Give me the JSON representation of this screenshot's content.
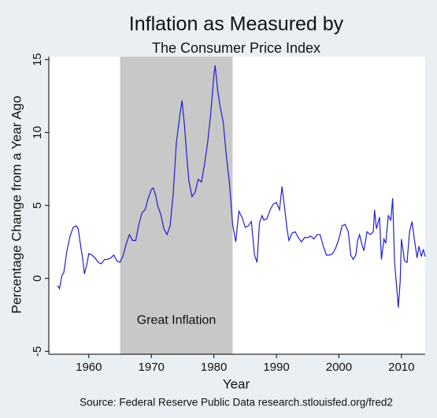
{
  "chart_data": {
    "type": "line",
    "title": "Inflation as Measured by",
    "subtitle": "The Consumer Price Index",
    "x_label": "Year",
    "y_label": "Percentage Change from a Year Ago",
    "source": "Source: Federal Reserve Public Data research.stlouisfed.org/fred2",
    "shade": {
      "x": [
        1965,
        1983
      ],
      "label": "Great Inflation",
      "color": "#c8c8c8"
    },
    "xlim": [
      1953.6,
      2013.8
    ],
    "xticks": [
      1960,
      1970,
      1980,
      1990,
      2000,
      2010
    ],
    "ylim": [
      -5.2,
      15.2
    ],
    "yticks": [
      -5,
      0,
      5,
      10,
      15
    ],
    "x": [
      1955.0,
      1955.3,
      1955.7,
      1956.0,
      1956.5,
      1957.0,
      1957.5,
      1958.0,
      1958.3,
      1958.7,
      1959.0,
      1959.3,
      1959.7,
      1960.0,
      1960.5,
      1961.0,
      1961.5,
      1962.0,
      1962.5,
      1963.0,
      1963.5,
      1964.0,
      1964.5,
      1965.0,
      1965.5,
      1966.0,
      1966.5,
      1967.0,
      1967.5,
      1968.0,
      1968.5,
      1969.0,
      1969.5,
      1970.0,
      1970.3,
      1970.7,
      1971.0,
      1971.5,
      1972.0,
      1972.5,
      1973.0,
      1973.5,
      1974.0,
      1974.5,
      1974.9,
      1975.3,
      1975.7,
      1976.0,
      1976.5,
      1977.0,
      1977.5,
      1978.0,
      1978.5,
      1979.0,
      1979.5,
      1980.0,
      1980.2,
      1980.6,
      1981.0,
      1981.5,
      1982.0,
      1982.5,
      1983.0,
      1983.5,
      1984.0,
      1984.5,
      1985.0,
      1985.5,
      1986.0,
      1986.5,
      1986.9,
      1987.3,
      1987.7,
      1988.0,
      1988.5,
      1989.0,
      1989.5,
      1990.0,
      1990.5,
      1990.9,
      1991.3,
      1991.7,
      1992.0,
      1992.5,
      1993.0,
      1993.5,
      1994.0,
      1994.5,
      1995.0,
      1995.5,
      1996.0,
      1996.5,
      1997.0,
      1997.5,
      1998.0,
      1998.5,
      1999.0,
      1999.5,
      2000.0,
      2000.5,
      2001.0,
      2001.5,
      2001.9,
      2002.3,
      2002.7,
      2003.0,
      2003.3,
      2003.7,
      2004.0,
      2004.5,
      2005.0,
      2005.5,
      2005.7,
      2006.0,
      2006.5,
      2006.8,
      2007.2,
      2007.5,
      2007.9,
      2008.3,
      2008.6,
      2008.9,
      2009.2,
      2009.5,
      2009.8,
      2010.0,
      2010.5,
      2010.9,
      2011.3,
      2011.7,
      2012.0,
      2012.5,
      2012.8,
      2013.2,
      2013.5,
      2013.8
    ],
    "series": [
      {
        "name": "CPI",
        "color": "#1f1fd0",
        "values": [
          -0.5,
          -0.7,
          0.2,
          0.4,
          1.9,
          2.9,
          3.5,
          3.6,
          3.4,
          2.2,
          1.4,
          0.3,
          1.0,
          1.7,
          1.6,
          1.4,
          1.1,
          1.0,
          1.3,
          1.3,
          1.4,
          1.6,
          1.2,
          1.1,
          1.6,
          2.4,
          3.0,
          2.6,
          2.6,
          3.7,
          4.5,
          4.7,
          5.5,
          6.1,
          6.2,
          5.7,
          5.0,
          4.4,
          3.4,
          3.0,
          3.6,
          5.8,
          9.3,
          11.0,
          12.2,
          10.5,
          8.2,
          6.7,
          5.6,
          5.9,
          6.8,
          6.6,
          7.8,
          9.3,
          11.3,
          13.9,
          14.6,
          12.9,
          11.8,
          10.7,
          8.4,
          6.5,
          3.7,
          2.5,
          4.6,
          4.2,
          3.5,
          3.6,
          3.9,
          1.6,
          1.1,
          3.8,
          4.3,
          4.0,
          4.1,
          4.7,
          5.1,
          5.2,
          4.7,
          6.3,
          4.9,
          3.4,
          2.6,
          3.1,
          3.2,
          2.8,
          2.5,
          2.8,
          2.8,
          2.9,
          2.7,
          3.0,
          3.0,
          2.2,
          1.6,
          1.6,
          1.7,
          2.1,
          2.7,
          3.6,
          3.7,
          3.2,
          1.6,
          1.3,
          1.6,
          2.6,
          3.0,
          2.3,
          1.9,
          3.2,
          3.0,
          3.2,
          4.7,
          3.4,
          4.2,
          1.3,
          2.7,
          2.4,
          4.3,
          4.0,
          5.5,
          1.1,
          -0.4,
          -2.0,
          -0.2,
          2.7,
          1.2,
          1.1,
          3.2,
          3.9,
          2.9,
          1.4,
          2.2,
          1.5,
          2.0,
          1.5
        ]
      }
    ]
  }
}
